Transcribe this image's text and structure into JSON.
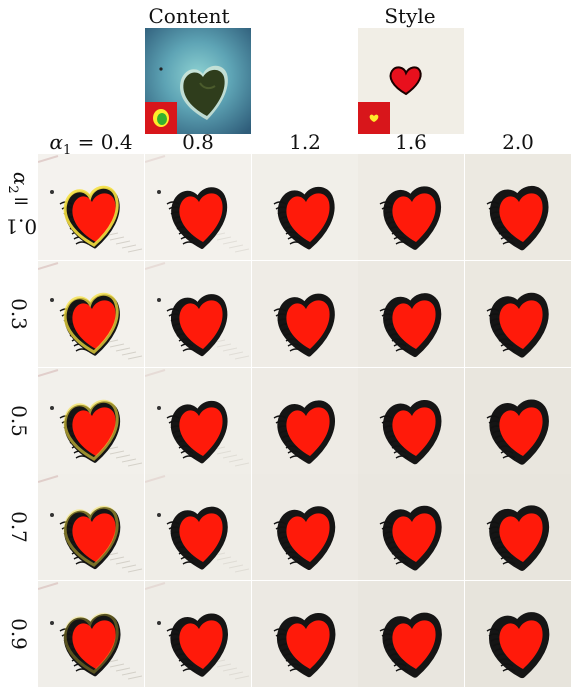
{
  "header": {
    "content_label": "Content",
    "style_label": "Style"
  },
  "columns": {
    "alpha1_prefix": "α",
    "alpha1_sub": "1",
    "alpha1_eq": " = ",
    "values": [
      "0.4",
      "0.8",
      "1.2",
      "1.6",
      "2.0"
    ]
  },
  "rows": {
    "alpha2_prefix": "α",
    "alpha2_sub": "2",
    "alpha2_eq": " = ",
    "values": [
      "0.1",
      "0.3",
      "0.5",
      "0.7",
      "0.9"
    ]
  },
  "colors": {
    "heart_red": "#ff1a0a",
    "island_green": "#2f3d1c",
    "sea": "#6aa6b4",
    "mask_red": "#d8161b",
    "mask_yellow": "#ffeb2a",
    "paper": "#f1eee6"
  }
}
